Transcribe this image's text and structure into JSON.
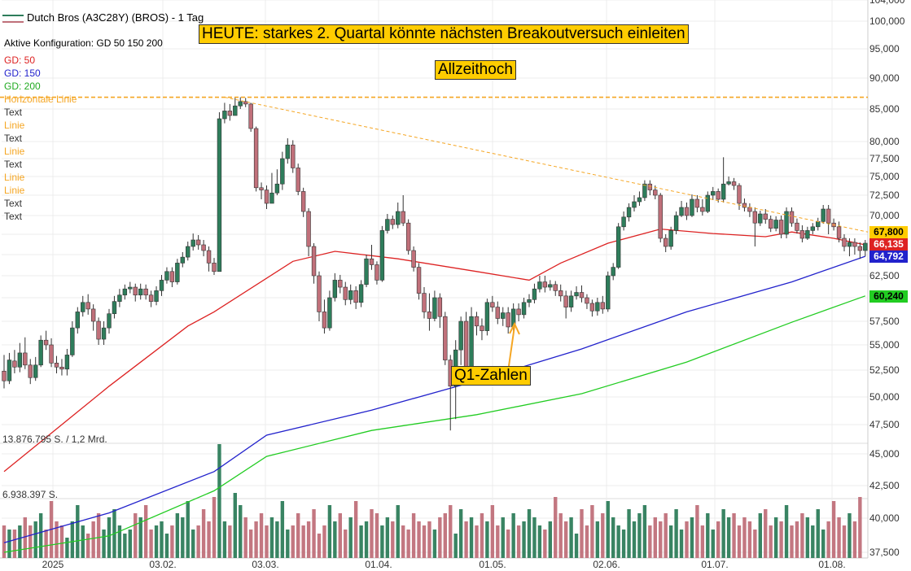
{
  "header": {
    "title": "Dutch Bros (A3C28Y) (BROS) - 1 Tag",
    "config": "Aktive Konfiguration: GD 50 150 200"
  },
  "legend": {
    "gd50": "GD: 50",
    "gd150": "GD: 150",
    "gd200": "GD: 200",
    "hline": "Horizontale Linie",
    "items": [
      "Text",
      "Linie",
      "Text",
      "Linie",
      "Text",
      "Linie",
      "Linie",
      "Text",
      "Text"
    ]
  },
  "annotations": {
    "headline": "HEUTE: starkes 2. Quartal könnte nächsten Breakoutversuch einleiten",
    "ath": "Allzeithoch",
    "q1": "Q1-Zahlen"
  },
  "volume_labels": {
    "top": "13.876.795 S. / 1,2 Mrd.",
    "mid": "6.938.397 S."
  },
  "price_tags": {
    "ma50": "66,135",
    "ma150": "64,792",
    "ma200": "60,240",
    "trendline": "67,800"
  },
  "colors": {
    "up": "#2e7d5b",
    "down": "#c0707a",
    "ma50": "#dd2222",
    "ma150": "#2222cc",
    "ma200": "#22cc22",
    "trend": "#f5a623",
    "box": "#ffcc00"
  },
  "chart_data": {
    "type": "candlestick",
    "title": "Dutch Bros (A3C28Y) (BROS) - 1 Tag",
    "x_ticks": [
      "2025",
      "03.02.",
      "03.03.",
      "01.04.",
      "01.05.",
      "02.06.",
      "01.07.",
      "01.08."
    ],
    "y_ticks": [
      "37,500",
      "40,000",
      "42,500",
      "45,000",
      "47,500",
      "50,000",
      "52,500",
      "55,000",
      "57,500",
      "60,000",
      "62,500",
      "65,000",
      "67,500",
      "70,000",
      "72,500",
      "75,000",
      "77,500",
      "80,000",
      "85,000",
      "90,000",
      "95,000",
      "100,000",
      "104,000"
    ],
    "ylim": [
      37.5,
      104
    ],
    "all_time_high": 86.9,
    "series_ma": {
      "ma50": [
        [
          0,
          43.6
        ],
        [
          20,
          51.0
        ],
        [
          35,
          57.0
        ],
        [
          40,
          58.5
        ],
        [
          55,
          64.2
        ],
        [
          63,
          65.4
        ],
        [
          75,
          64.5
        ],
        [
          90,
          63.0
        ],
        [
          100,
          62.0
        ],
        [
          106,
          64.0
        ],
        [
          115,
          66.4
        ],
        [
          125,
          68.2
        ],
        [
          135,
          67.6
        ],
        [
          145,
          67.2
        ],
        [
          150,
          67.8
        ],
        [
          158,
          67.0
        ],
        [
          164,
          66.2
        ]
      ],
      "ma150": [
        [
          0,
          38.2
        ],
        [
          20,
          40.4
        ],
        [
          40,
          43.6
        ],
        [
          50,
          46.6
        ],
        [
          70,
          48.8
        ],
        [
          90,
          51.5
        ],
        [
          110,
          54.6
        ],
        [
          130,
          58.5
        ],
        [
          150,
          61.8
        ],
        [
          164,
          64.8
        ]
      ],
      "ma200": [
        [
          0,
          37.0
        ],
        [
          20,
          38.7
        ],
        [
          40,
          42.1
        ],
        [
          50,
          44.8
        ],
        [
          70,
          47.0
        ],
        [
          90,
          48.4
        ],
        [
          110,
          50.3
        ],
        [
          130,
          53.3
        ],
        [
          150,
          57.4
        ],
        [
          164,
          60.2
        ]
      ]
    },
    "trendline": {
      "x": [
        42,
        175
      ],
      "y": [
        86.9,
        67.8
      ]
    },
    "candles": [
      [
        52.4,
        51.5,
        54.0,
        50.8
      ],
      [
        51.5,
        53.5,
        54.2,
        51.2
      ],
      [
        53.4,
        52.8,
        54.5,
        52.2
      ],
      [
        52.8,
        54.2,
        55.2,
        52.3
      ],
      [
        54.2,
        53.0,
        55.8,
        52.6
      ],
      [
        53.0,
        51.8,
        53.6,
        51.2
      ],
      [
        51.8,
        53.0,
        53.8,
        51.5
      ],
      [
        53.0,
        55.5,
        56.0,
        52.8
      ],
      [
        55.5,
        55.0,
        56.5,
        54.5
      ],
      [
        55.0,
        53.2,
        55.7,
        52.8
      ],
      [
        53.2,
        52.8,
        53.9,
        52.2
      ],
      [
        52.8,
        52.6,
        53.6,
        52.0
      ],
      [
        52.6,
        54.0,
        54.6,
        52.0
      ],
      [
        54.0,
        56.8,
        57.5,
        53.8
      ],
      [
        56.8,
        58.5,
        59.0,
        56.2
      ],
      [
        58.5,
        59.5,
        60.2,
        58.0
      ],
      [
        59.5,
        58.8,
        60.4,
        58.2
      ],
      [
        58.8,
        57.5,
        59.3,
        56.5
      ],
      [
        57.5,
        55.6,
        57.9,
        55.0
      ],
      [
        55.6,
        56.8,
        57.5,
        55.0
      ],
      [
        56.8,
        58.3,
        58.8,
        56.2
      ],
      [
        58.3,
        59.6,
        60.2,
        57.8
      ],
      [
        59.6,
        60.3,
        61.0,
        59.0
      ],
      [
        60.3,
        61.0,
        61.5,
        59.8
      ],
      [
        61.0,
        61.2,
        61.8,
        60.5
      ],
      [
        61.2,
        60.3,
        61.6,
        59.6
      ],
      [
        60.3,
        61.0,
        61.6,
        59.8
      ],
      [
        61.0,
        60.3,
        61.5,
        59.8
      ],
      [
        60.3,
        59.6,
        60.8,
        59.0
      ],
      [
        59.6,
        60.8,
        61.3,
        59.2
      ],
      [
        60.8,
        62.0,
        62.6,
        60.2
      ],
      [
        62.0,
        63.0,
        63.5,
        61.6
      ],
      [
        63.0,
        61.8,
        63.5,
        61.2
      ],
      [
        61.8,
        64.0,
        64.5,
        61.5
      ],
      [
        64.0,
        64.7,
        65.3,
        63.5
      ],
      [
        64.7,
        66.0,
        66.6,
        64.3
      ],
      [
        66.0,
        66.8,
        67.6,
        65.5
      ],
      [
        66.8,
        66.2,
        67.4,
        65.6
      ],
      [
        66.2,
        65.5,
        66.8,
        64.8
      ],
      [
        65.5,
        64.0,
        66.0,
        63.0
      ],
      [
        64.0,
        63.0,
        64.6,
        62.6
      ],
      [
        63.0,
        83.5,
        84.5,
        79.5
      ],
      [
        83.5,
        84.7,
        86.0,
        82.8
      ],
      [
        84.7,
        84.0,
        85.8,
        83.2
      ],
      [
        84.0,
        85.5,
        86.9,
        84.0
      ],
      [
        85.5,
        86.2,
        86.9,
        85.0
      ],
      [
        86.2,
        85.8,
        86.8,
        85.3
      ],
      [
        85.8,
        82.0,
        86.0,
        81.5
      ],
      [
        82.0,
        73.5,
        82.3,
        73.0
      ],
      [
        73.5,
        73.2,
        74.2,
        72.0
      ],
      [
        73.2,
        71.5,
        73.8,
        70.8
      ],
      [
        71.5,
        72.8,
        75.5,
        71.8
      ],
      [
        72.8,
        74.0,
        76.0,
        72.5
      ],
      [
        74.0,
        77.5,
        78.5,
        73.2
      ],
      [
        77.5,
        79.5,
        80.5,
        76.8
      ],
      [
        79.5,
        76.2,
        80.2,
        75.5
      ],
      [
        76.2,
        73.0,
        76.8,
        72.5
      ],
      [
        73.0,
        70.5,
        73.5,
        69.8
      ],
      [
        70.5,
        66.0,
        70.9,
        64.8
      ],
      [
        66.0,
        62.5,
        66.4,
        61.6
      ],
      [
        62.5,
        58.5,
        63.0,
        57.5
      ],
      [
        58.5,
        56.8,
        59.8,
        56.2
      ],
      [
        56.8,
        60.0,
        60.8,
        56.5
      ],
      [
        60.0,
        62.0,
        62.8,
        59.6
      ],
      [
        62.0,
        61.2,
        62.6,
        60.5
      ],
      [
        61.2,
        59.8,
        61.8,
        59.2
      ],
      [
        59.8,
        60.8,
        61.5,
        59.3
      ],
      [
        60.8,
        59.5,
        61.3,
        58.8
      ],
      [
        59.5,
        61.5,
        62.0,
        59.0
      ],
      [
        61.5,
        64.5,
        65.0,
        61.2
      ],
      [
        64.5,
        63.8,
        66.2,
        63.2
      ],
      [
        63.8,
        62.0,
        64.2,
        61.5
      ],
      [
        62.0,
        68.0,
        68.6,
        61.8
      ],
      [
        68.0,
        69.5,
        70.2,
        67.6
      ],
      [
        69.5,
        68.8,
        70.0,
        68.2
      ],
      [
        68.8,
        70.5,
        71.6,
        68.3
      ],
      [
        70.5,
        69.0,
        72.5,
        68.6
      ],
      [
        69.0,
        65.5,
        69.5,
        65.0
      ],
      [
        65.5,
        63.5,
        66.0,
        63.0
      ],
      [
        63.5,
        60.5,
        64.0,
        59.8
      ],
      [
        60.5,
        58.5,
        61.2,
        57.8
      ],
      [
        58.5,
        57.8,
        60.5,
        56.5
      ],
      [
        57.8,
        60.0,
        60.8,
        57.5
      ],
      [
        60.0,
        58.0,
        60.5,
        56.8
      ],
      [
        58.0,
        53.5,
        58.5,
        53.0
      ],
      [
        53.5,
        51.0,
        54.0,
        47.0
      ],
      [
        51.0,
        54.5,
        55.5,
        48.0
      ],
      [
        54.5,
        57.5,
        58.0,
        53.0
      ],
      [
        57.5,
        52.0,
        58.5,
        51.5
      ],
      [
        52.0,
        58.0,
        59.0,
        51.5
      ],
      [
        58.0,
        57.0,
        58.5,
        56.0
      ],
      [
        57.0,
        56.5,
        57.8,
        55.5
      ],
      [
        56.5,
        59.5,
        59.9,
        56.0
      ],
      [
        59.5,
        59.0,
        60.2,
        58.5
      ],
      [
        59.0,
        57.8,
        59.6,
        57.2
      ],
      [
        57.8,
        58.4,
        59.0,
        57.0
      ],
      [
        58.4,
        56.9,
        59.0,
        56.2
      ],
      [
        56.9,
        58.8,
        59.4,
        56.5
      ],
      [
        58.8,
        58.2,
        59.4,
        57.5
      ],
      [
        58.2,
        59.5,
        60.0,
        57.8
      ],
      [
        59.5,
        59.8,
        60.4,
        59.0
      ],
      [
        59.8,
        61.0,
        61.6,
        59.4
      ],
      [
        61.0,
        61.8,
        62.5,
        60.6
      ],
      [
        61.8,
        61.2,
        62.5,
        60.6
      ],
      [
        61.2,
        61.5,
        62.0,
        60.8
      ],
      [
        61.5,
        60.8,
        61.9,
        60.2
      ],
      [
        60.8,
        60.2,
        61.5,
        59.6
      ],
      [
        60.2,
        59.0,
        60.8,
        57.8
      ],
      [
        59.0,
        60.2,
        60.8,
        58.5
      ],
      [
        60.2,
        60.6,
        61.3,
        59.8
      ],
      [
        60.6,
        60.0,
        61.4,
        59.5
      ],
      [
        60.0,
        59.4,
        60.4,
        58.8
      ],
      [
        59.4,
        58.6,
        59.8,
        58.0
      ],
      [
        58.6,
        59.5,
        60.0,
        58.1
      ],
      [
        59.5,
        58.8,
        60.2,
        58.3
      ],
      [
        58.8,
        62.5,
        63.0,
        58.5
      ],
      [
        62.5,
        63.5,
        64.0,
        62.0
      ],
      [
        63.5,
        68.5,
        69.0,
        63.3
      ],
      [
        68.5,
        69.8,
        70.5,
        68.0
      ],
      [
        69.8,
        71.0,
        71.5,
        69.2
      ],
      [
        71.0,
        71.7,
        72.5,
        70.5
      ],
      [
        71.7,
        72.2,
        73.0,
        71.2
      ],
      [
        72.2,
        74.0,
        74.5,
        71.8
      ],
      [
        74.0,
        73.2,
        74.5,
        72.5
      ],
      [
        73.2,
        72.5,
        73.8,
        72.0
      ],
      [
        72.5,
        67.0,
        72.8,
        66.5
      ],
      [
        67.0,
        66.0,
        67.5,
        65.3
      ],
      [
        66.0,
        68.0,
        68.5,
        65.6
      ],
      [
        68.0,
        70.0,
        70.5,
        67.5
      ],
      [
        70.0,
        71.0,
        71.8,
        69.8
      ],
      [
        71.0,
        70.0,
        71.6,
        69.4
      ],
      [
        70.0,
        72.0,
        72.6,
        69.8
      ],
      [
        72.0,
        71.0,
        72.5,
        70.4
      ],
      [
        71.0,
        70.5,
        72.0,
        70.0
      ],
      [
        70.5,
        72.5,
        73.0,
        70.3
      ],
      [
        72.5,
        73.0,
        73.6,
        71.9
      ],
      [
        73.0,
        72.0,
        73.4,
        71.6
      ],
      [
        72.0,
        74.0,
        77.7,
        71.6
      ],
      [
        74.0,
        74.3,
        75.0,
        73.8
      ],
      [
        74.3,
        73.8,
        74.8,
        73.2
      ],
      [
        73.8,
        71.5,
        74.1,
        70.7
      ],
      [
        71.5,
        71.0,
        72.1,
        70.5
      ],
      [
        71.0,
        70.5,
        71.5,
        69.8
      ],
      [
        70.5,
        69.0,
        71.0,
        66.0
      ],
      [
        69.0,
        70.2,
        70.6,
        68.6
      ],
      [
        70.2,
        69.5,
        70.8,
        68.9
      ],
      [
        69.5,
        68.3,
        70.0,
        67.8
      ],
      [
        68.3,
        69.4,
        69.9,
        67.9
      ],
      [
        69.4,
        67.5,
        70.0,
        67.0
      ],
      [
        67.5,
        70.5,
        71.0,
        67.0
      ],
      [
        70.5,
        69.0,
        71.0,
        68.5
      ],
      [
        69.0,
        68.0,
        69.6,
        67.6
      ],
      [
        68.0,
        67.0,
        68.7,
        66.5
      ],
      [
        67.0,
        68.0,
        68.5,
        66.8
      ],
      [
        68.0,
        68.5,
        69.0,
        67.5
      ],
      [
        68.5,
        69.2,
        69.7,
        68.0
      ],
      [
        69.2,
        70.8,
        71.3,
        68.9
      ],
      [
        70.8,
        69.0,
        71.3,
        67.5
      ],
      [
        69.0,
        68.5,
        69.6,
        68.0
      ],
      [
        68.5,
        67.0,
        69.2,
        66.5
      ],
      [
        67.0,
        66.0,
        67.5,
        65.4
      ],
      [
        66.0,
        66.5,
        67.0,
        64.8
      ],
      [
        66.5,
        66.0,
        67.0,
        65.0
      ],
      [
        66.0,
        65.5,
        66.5,
        64.5
      ],
      [
        65.5,
        66.4,
        66.8,
        64.8
      ]
    ],
    "volume": [
      8,
      7,
      7,
      8,
      10,
      8,
      9,
      11,
      7,
      14,
      9,
      8,
      5,
      9,
      13,
      8,
      6,
      9,
      11,
      7,
      10,
      12,
      8,
      6,
      7,
      11,
      10,
      13,
      7,
      8,
      9,
      6,
      8,
      11,
      10,
      14,
      7,
      8,
      12,
      9,
      15,
      6,
      9,
      8,
      16,
      13,
      10,
      7,
      9,
      11,
      8,
      10,
      9,
      14,
      7,
      8,
      11,
      8,
      9,
      12,
      6,
      8,
      13,
      9,
      11,
      7,
      10,
      14,
      8,
      9,
      12,
      11,
      8,
      10,
      9,
      13,
      8,
      7,
      11,
      9,
      8,
      9,
      7,
      10,
      11,
      13,
      6,
      12,
      9,
      10,
      8,
      11,
      9,
      13,
      8,
      10,
      7,
      11,
      8,
      9,
      12,
      10,
      8,
      7,
      9,
      15,
      11,
      9,
      10,
      6,
      12,
      8,
      13,
      9,
      11,
      14,
      10,
      8,
      7,
      12,
      9,
      11,
      13,
      8,
      10,
      9,
      11,
      8,
      12,
      7,
      9,
      10,
      13,
      8,
      11,
      7,
      9,
      12,
      10,
      11,
      8,
      10,
      9,
      7,
      11,
      12,
      8,
      10,
      9,
      13,
      8,
      9,
      11,
      10,
      8,
      12,
      7,
      9,
      14,
      10,
      8,
      11,
      9,
      15
    ]
  }
}
